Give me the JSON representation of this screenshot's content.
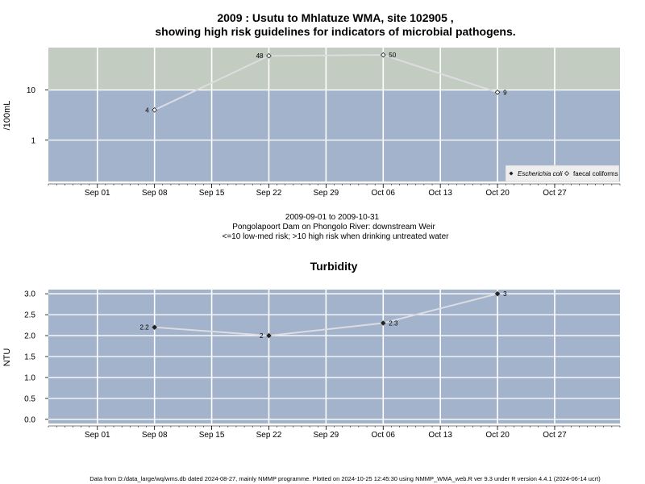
{
  "chart_data": [
    {
      "type": "line",
      "title": "2009 : Usutu to Mhlatuze WMA, site 102905 ,",
      "subtitle": "showing high risk guidelines for indicators of microbial pathogens.",
      "ylabel": "/100mL",
      "yscale": "log",
      "xlim": [
        "2009-08-26",
        "2009-11-04"
      ],
      "ylim": [
        0.15,
        70
      ],
      "y_ticks": [
        1,
        10
      ],
      "x_ticks": [
        "Sep 01",
        "Sep 08",
        "Sep 15",
        "Sep 22",
        "Sep 29",
        "Oct 06",
        "Oct 13",
        "Oct 20",
        "Oct 27"
      ],
      "x_tick_dates": [
        "2009-09-01",
        "2009-09-08",
        "2009-09-15",
        "2009-09-22",
        "2009-09-29",
        "2009-10-06",
        "2009-10-13",
        "2009-10-20",
        "2009-10-27"
      ],
      "guideline": 10,
      "grid": true,
      "legend_position": "bottom-right",
      "series": [
        {
          "name": "Escherichia coli",
          "marker": "filled-diamond",
          "points": []
        },
        {
          "name": "faecal coliforms",
          "marker": "open-diamond",
          "points": [
            {
              "x": "2009-09-08",
              "y": 4,
              "label": "4"
            },
            {
              "x": "2009-09-22",
              "y": 48,
              "label": "48"
            },
            {
              "x": "2009-10-06",
              "y": 50,
              "label": "50"
            },
            {
              "x": "2009-10-20",
              "y": 9,
              "label": "9"
            }
          ]
        }
      ],
      "annotations": [
        "2009-09-01 to 2009-10-31",
        "Pongolapoort Dam on Phongolo River: downstream Weir",
        "<=10 low-med risk; >10 high risk when drinking untreated water"
      ]
    },
    {
      "type": "line",
      "title": "Turbidity",
      "ylabel": "NTU",
      "xlim": [
        "2009-08-26",
        "2009-11-04"
      ],
      "ylim": [
        -0.1,
        3.1
      ],
      "y_ticks": [
        "0.0",
        "0.5",
        "1.0",
        "1.5",
        "2.0",
        "2.5",
        "3.0"
      ],
      "x_ticks": [
        "Sep 01",
        "Sep 08",
        "Sep 15",
        "Sep 22",
        "Sep 29",
        "Oct 06",
        "Oct 13",
        "Oct 20",
        "Oct 27"
      ],
      "x_tick_dates": [
        "2009-09-01",
        "2009-09-08",
        "2009-09-15",
        "2009-09-22",
        "2009-09-29",
        "2009-10-06",
        "2009-10-13",
        "2009-10-20",
        "2009-10-27"
      ],
      "grid": true,
      "series": [
        {
          "marker": "filled-diamond",
          "points": [
            {
              "x": "2009-09-08",
              "y": 2.2,
              "label": "2.2"
            },
            {
              "x": "2009-09-22",
              "y": 2.0,
              "label": "2"
            },
            {
              "x": "2009-10-06",
              "y": 2.3,
              "label": "2.3"
            },
            {
              "x": "2009-10-20",
              "y": 3.0,
              "label": "3"
            }
          ]
        }
      ]
    }
  ],
  "footer": "Data from D:/data_large/wq/wms.db dated 2024-08-27, mainly NMMP programme. Plotted on 2024-10-25 12:45:30 using NMMP_WMA_web.R ver 9.3 under R version 4.4.1 (2024-06-14 ucrt)",
  "colors": {
    "background": "#a3b3cc",
    "high_risk_band": "#c3ccc0",
    "grid": "#ffffff",
    "line": "#dcdce2",
    "marker": "#222222"
  }
}
